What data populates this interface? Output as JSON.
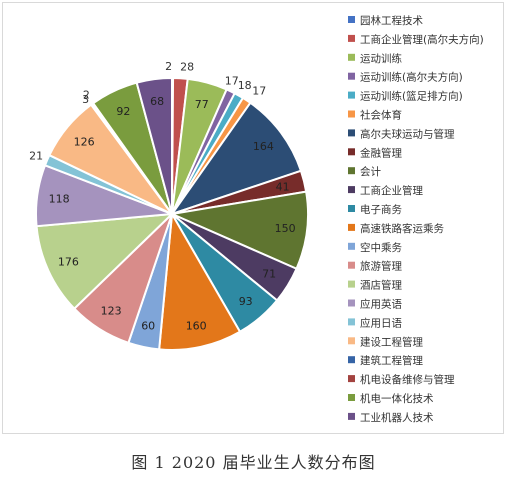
{
  "caption": "图 1 2020 届毕业生人数分布图",
  "chart_data": {
    "type": "pie",
    "title": "",
    "legend_position": "right",
    "start_angle_deg": 0,
    "direction": "clockwise",
    "categories": [
      "园林工程技术",
      "工商企业管理(高尔夫方向)",
      "运动训练",
      "运动训练(高尔夫方向)",
      "运动训练(篮足排方向)",
      "社会体育",
      "高尔夫球运动与管理",
      "金融管理",
      "会计",
      "工商企业管理",
      "电子商务",
      "高速铁路客运乘务",
      "空中乘务",
      "旅游管理",
      "酒店管理",
      "应用英语",
      "应用日语",
      "建设工程管理",
      "建筑工程管理",
      "机电设备维修与管理",
      "机电一体化技术",
      "工业机器人技术"
    ],
    "values": [
      2,
      28,
      77,
      17,
      18,
      17,
      164,
      41,
      150,
      71,
      93,
      160,
      60,
      123,
      176,
      118,
      21,
      126,
      2,
      3,
      92,
      68
    ],
    "colors": [
      "#4472c4",
      "#c0504d",
      "#9bbb59",
      "#8064a2",
      "#4bacc6",
      "#f79646",
      "#2c4d75",
      "#772c2a",
      "#5f7530",
      "#4d3b62",
      "#2e8aa3",
      "#e3771a",
      "#7fa5d8",
      "#d88c8a",
      "#b8d18d",
      "#a593be",
      "#84c3d6",
      "#f9b985",
      "#3664a6",
      "#a34340",
      "#7a9c3e",
      "#6b5189"
    ]
  }
}
